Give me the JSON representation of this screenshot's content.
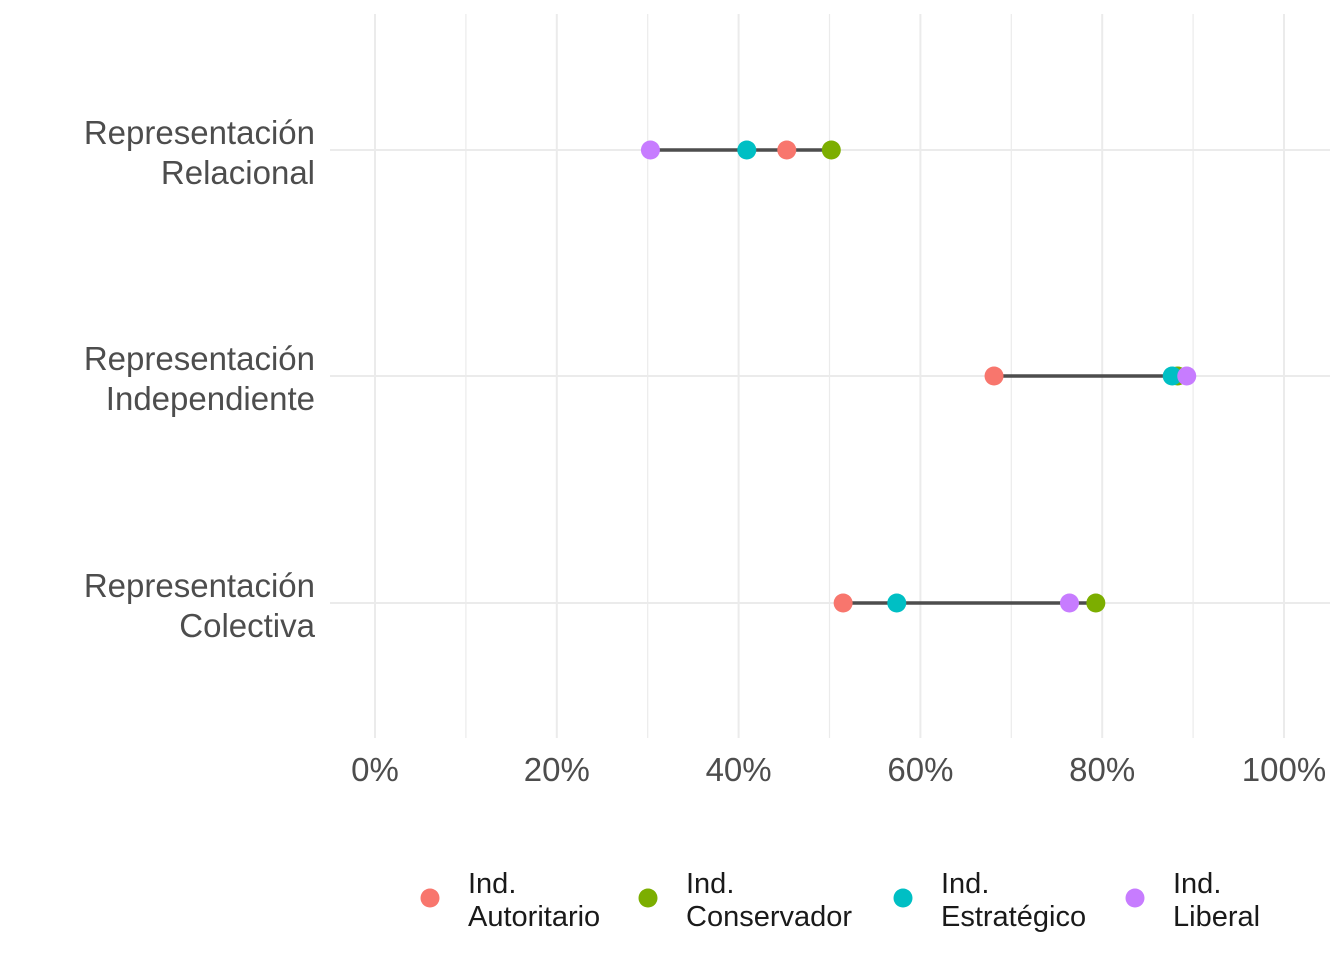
{
  "chart_data": {
    "type": "dumbbell",
    "title": "",
    "xlabel": "",
    "ylabel": "",
    "xlim": [
      0,
      100
    ],
    "x_ticks": [
      "0%",
      "20%",
      "40%",
      "60%",
      "80%",
      "100%"
    ],
    "x_tick_values": [
      0,
      20,
      40,
      60,
      80,
      100
    ],
    "grid": true,
    "legend_position": "bottom",
    "categories": [
      [
        "Representación",
        "Relacional"
      ],
      [
        "Representación",
        "Independiente"
      ],
      [
        "Representación",
        "Colectiva"
      ]
    ],
    "series": [
      {
        "name": [
          "Ind.",
          "Autoritario"
        ],
        "color": "#F8766D",
        "values": [
          45.3,
          68.1,
          51.5
        ]
      },
      {
        "name": [
          "Ind.",
          "Conservador"
        ],
        "color": "#7CAE00",
        "values": [
          50.2,
          88.3,
          79.3
        ]
      },
      {
        "name": [
          "Ind.",
          "Estratégico"
        ],
        "color": "#00BFC4",
        "values": [
          40.9,
          87.7,
          57.4
        ]
      },
      {
        "name": [
          "Ind.",
          "Liberal"
        ],
        "color": "#C77CFF",
        "values": [
          30.3,
          89.3,
          76.4
        ]
      }
    ]
  }
}
